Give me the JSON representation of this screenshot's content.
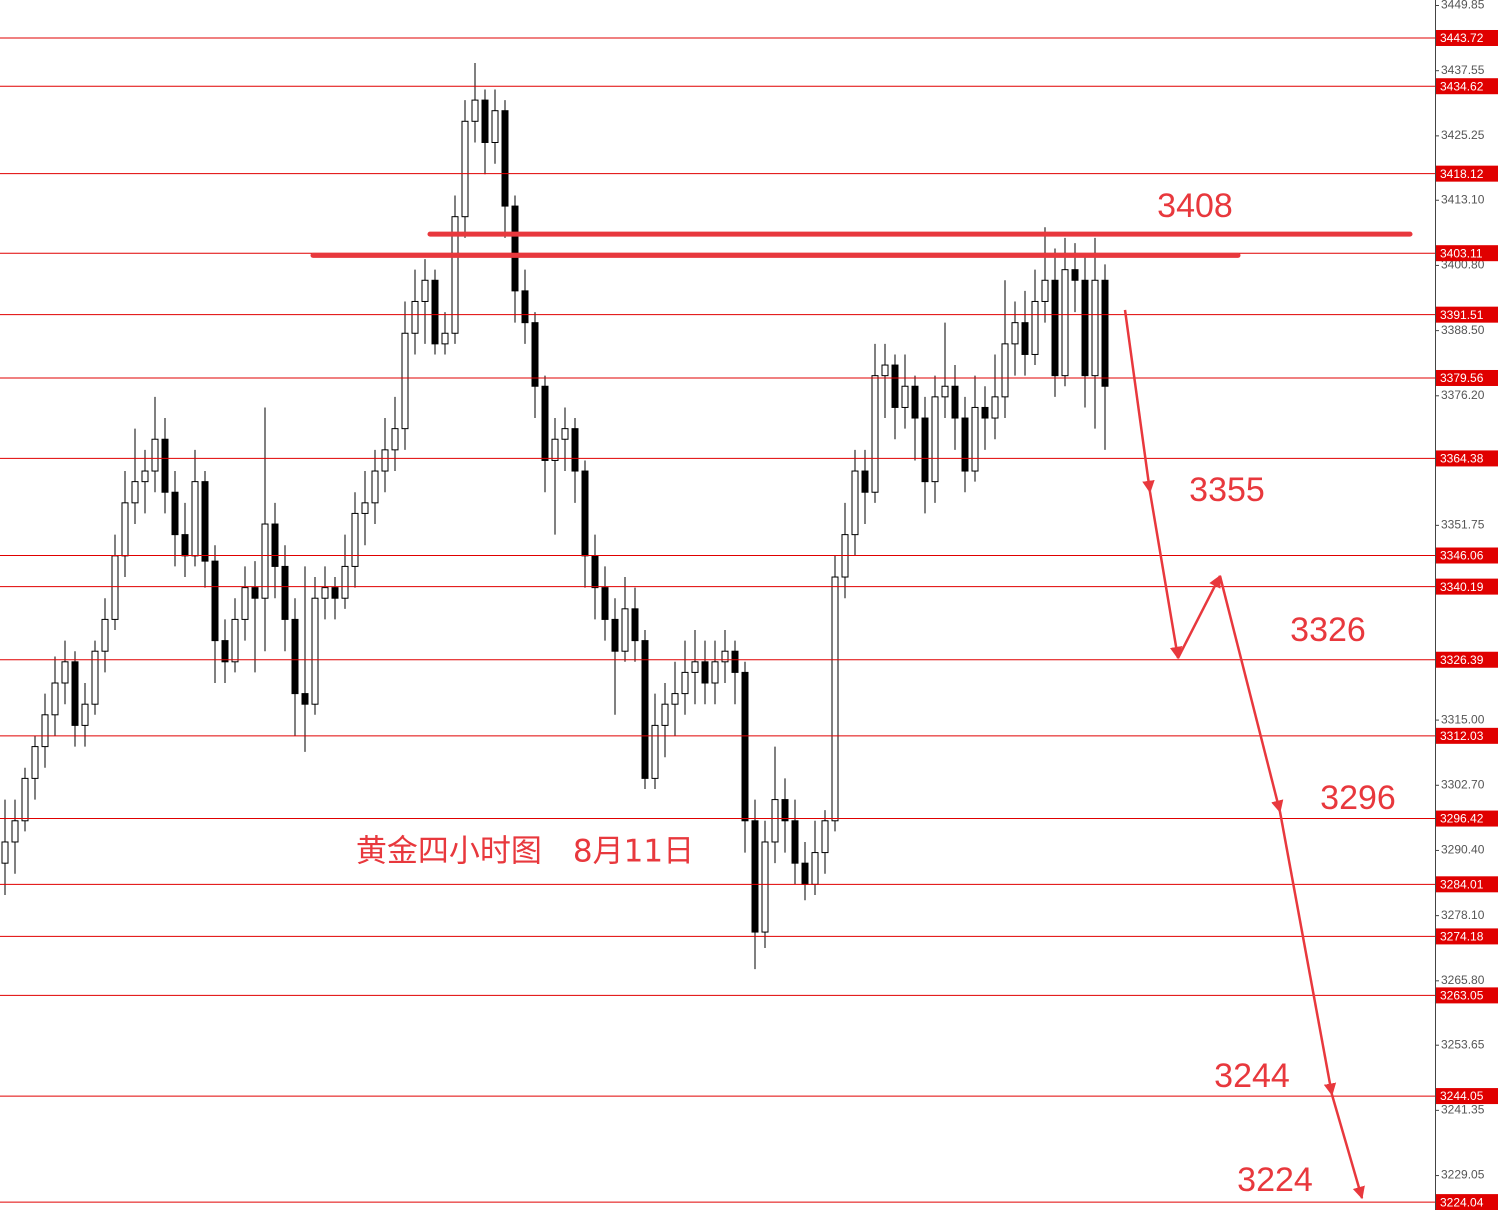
{
  "chart_data": {
    "type": "candlestick",
    "title": "黄金四小时图　8月11日",
    "ylim": [
      3222.55,
      3450.89
    ],
    "yticks": [
      3449.85,
      3437.55,
      3425.25,
      {
        "value": 3413.1,
        "label": "3413.10"
      },
      {
        "value": 3400.8,
        "label": "3400.80"
      },
      {
        "value": 3388.5,
        "label": "3388.50"
      },
      {
        "value": 3376.2,
        "label": "3376.20"
      },
      3351.75,
      {
        "value": 3315,
        "label": "3315.00"
      },
      {
        "value": 3302.7,
        "label": "3302.70"
      },
      {
        "value": 3290.4,
        "label": "3290.40"
      },
      {
        "value": 3278.1,
        "label": "3278.10"
      },
      {
        "value": 3265.8,
        "label": "3265.80"
      },
      3253.65,
      3241.35,
      3229.05
    ],
    "levels": [
      3443.72,
      3434.62,
      3418.12,
      3403.11,
      3391.51,
      3379.56,
      3364.38,
      3346.06,
      3340.19,
      3326.39,
      3312.03,
      3296.42,
      3284.01,
      3274.18,
      3263.05,
      3244.05,
      3224.04
    ],
    "level_color": "#e00000",
    "up_color": "#ffffff",
    "down_color": "#000000",
    "resistance_lines": [
      3406.7,
      3402.7
    ],
    "projection": [
      3392.4,
      3358.05,
      3326.7,
      3342.2,
      3297.7,
      3244.3,
      3224.8
    ],
    "annotation_color": "#e8383d",
    "annotations": [
      "3408",
      "3355",
      "3326",
      "3296",
      "3244",
      "3224"
    ],
    "ohlc": [
      [
        3288,
        3300,
        3282,
        3292
      ],
      [
        3292,
        3300,
        3286,
        3296
      ],
      [
        3296,
        3306,
        3294,
        3304
      ],
      [
        3304,
        3312,
        3300,
        3310
      ],
      [
        3310,
        3320,
        3306,
        3316
      ],
      [
        3316,
        3327,
        3312,
        3322
      ],
      [
        3322,
        3330,
        3318,
        3326
      ],
      [
        3326,
        3328,
        3310,
        3314
      ],
      [
        3314,
        3322,
        3310,
        3318
      ],
      [
        3318,
        3330,
        3316,
        3328
      ],
      [
        3328,
        3338,
        3324,
        3334
      ],
      [
        3334,
        3350,
        3332,
        3346
      ],
      [
        3346,
        3362,
        3342,
        3356
      ],
      [
        3356,
        3370,
        3352,
        3360
      ],
      [
        3360,
        3366,
        3354,
        3362
      ],
      [
        3362,
        3376,
        3358,
        3368
      ],
      [
        3368,
        3372,
        3354,
        3358
      ],
      [
        3358,
        3362,
        3344,
        3350
      ],
      [
        3350,
        3356,
        3342,
        3346
      ],
      [
        3346,
        3366,
        3344,
        3360
      ],
      [
        3360,
        3362,
        3340,
        3345
      ],
      [
        3345,
        3348,
        3322,
        3330
      ],
      [
        3330,
        3334,
        3322,
        3326
      ],
      [
        3326,
        3338,
        3324,
        3334
      ],
      [
        3334,
        3344,
        3330,
        3340
      ],
      [
        3340,
        3345,
        3324,
        3338
      ],
      [
        3338,
        3374,
        3328,
        3352
      ],
      [
        3352,
        3356,
        3338,
        3344
      ],
      [
        3344,
        3348,
        3328,
        3334
      ],
      [
        3334,
        3338,
        3312,
        3320
      ],
      [
        3320,
        3344,
        3309,
        3318
      ],
      [
        3318,
        3342,
        3316,
        3338
      ],
      [
        3338,
        3344,
        3334,
        3340
      ],
      [
        3340,
        3342,
        3334,
        3338
      ],
      [
        3338,
        3350,
        3336,
        3344
      ],
      [
        3344,
        3358,
        3340,
        3354
      ],
      [
        3354,
        3362,
        3348,
        3356
      ],
      [
        3356,
        3366,
        3352,
        3362
      ],
      [
        3362,
        3372,
        3358,
        3366
      ],
      [
        3366,
        3376,
        3362,
        3370
      ],
      [
        3370,
        3394,
        3366,
        3388
      ],
      [
        3388,
        3400,
        3384,
        3394
      ],
      [
        3394,
        3402,
        3386,
        3398
      ],
      [
        3398,
        3400,
        3384,
        3386
      ],
      [
        3386,
        3392,
        3384,
        3388
      ],
      [
        3388,
        3414,
        3386,
        3410
      ],
      [
        3410,
        3432,
        3406,
        3428
      ],
      [
        3428,
        3439,
        3424,
        3432
      ],
      [
        3432,
        3434,
        3418,
        3424
      ],
      [
        3424,
        3434,
        3420,
        3430
      ],
      [
        3430,
        3432,
        3406,
        3412
      ],
      [
        3412,
        3414,
        3390,
        3396
      ],
      [
        3396,
        3400,
        3386,
        3390
      ],
      [
        3390,
        3392,
        3372,
        3378
      ],
      [
        3378,
        3380,
        3358,
        3364
      ],
      [
        3364,
        3372,
        3350,
        3368
      ],
      [
        3368,
        3374,
        3362,
        3370
      ],
      [
        3370,
        3372,
        3356,
        3362
      ],
      [
        3362,
        3364,
        3340,
        3346
      ],
      [
        3346,
        3350,
        3334,
        3340
      ],
      [
        3340,
        3344,
        3330,
        3334
      ],
      [
        3334,
        3338,
        3316,
        3328
      ],
      [
        3328,
        3342,
        3326,
        3336
      ],
      [
        3336,
        3340,
        3326,
        3330
      ],
      [
        3330,
        3332,
        3302,
        3304
      ],
      [
        3304,
        3320,
        3302,
        3314
      ],
      [
        3314,
        3322,
        3308,
        3318
      ],
      [
        3318,
        3326,
        3312,
        3320
      ],
      [
        3320,
        3330,
        3316,
        3324
      ],
      [
        3324,
        3332,
        3318,
        3326
      ],
      [
        3326,
        3330,
        3318,
        3322
      ],
      [
        3322,
        3330,
        3318,
        3326
      ],
      [
        3326,
        3332,
        3322,
        3328
      ],
      [
        3328,
        3330,
        3318,
        3324
      ],
      [
        3324,
        3326,
        3290,
        3296
      ],
      [
        3296,
        3300,
        3268,
        3275
      ],
      [
        3275,
        3296,
        3272,
        3292
      ],
      [
        3292,
        3310,
        3288,
        3300
      ],
      [
        3300,
        3304,
        3290,
        3296
      ],
      [
        3296,
        3300,
        3284,
        3288
      ],
      [
        3288,
        3292,
        3281,
        3284
      ],
      [
        3284,
        3296,
        3282,
        3290
      ],
      [
        3290,
        3298,
        3286,
        3296
      ],
      [
        3296,
        3346,
        3294,
        3342
      ],
      [
        3342,
        3356,
        3338,
        3350
      ],
      [
        3350,
        3366,
        3346,
        3362
      ],
      [
        3362,
        3366,
        3352,
        3358
      ],
      [
        3358,
        3386,
        3356,
        3380
      ],
      [
        3380,
        3386,
        3372,
        3382
      ],
      [
        3382,
        3384,
        3368,
        3374
      ],
      [
        3374,
        3384,
        3370,
        3378
      ],
      [
        3378,
        3380,
        3364,
        3372
      ],
      [
        3372,
        3376,
        3354,
        3360
      ],
      [
        3360,
        3380,
        3356,
        3376
      ],
      [
        3376,
        3390,
        3372,
        3378
      ],
      [
        3378,
        3382,
        3366,
        3372
      ],
      [
        3372,
        3376,
        3358,
        3362
      ],
      [
        3362,
        3380,
        3360,
        3374
      ],
      [
        3374,
        3378,
        3366,
        3372
      ],
      [
        3372,
        3384,
        3368,
        3376
      ],
      [
        3376,
        3398,
        3372,
        3386
      ],
      [
        3386,
        3394,
        3380,
        3390
      ],
      [
        3390,
        3396,
        3380,
        3384
      ],
      [
        3384,
        3400,
        3382,
        3394
      ],
      [
        3394,
        3408,
        3390,
        3398
      ],
      [
        3398,
        3404,
        3376,
        3380
      ],
      [
        3380,
        3406,
        3378,
        3400
      ],
      [
        3400,
        3405,
        3392,
        3398
      ],
      [
        3398,
        3403,
        3374,
        3380
      ],
      [
        3380,
        3406,
        3370,
        3398
      ],
      [
        3398,
        3401,
        3366,
        3378
      ]
    ]
  }
}
